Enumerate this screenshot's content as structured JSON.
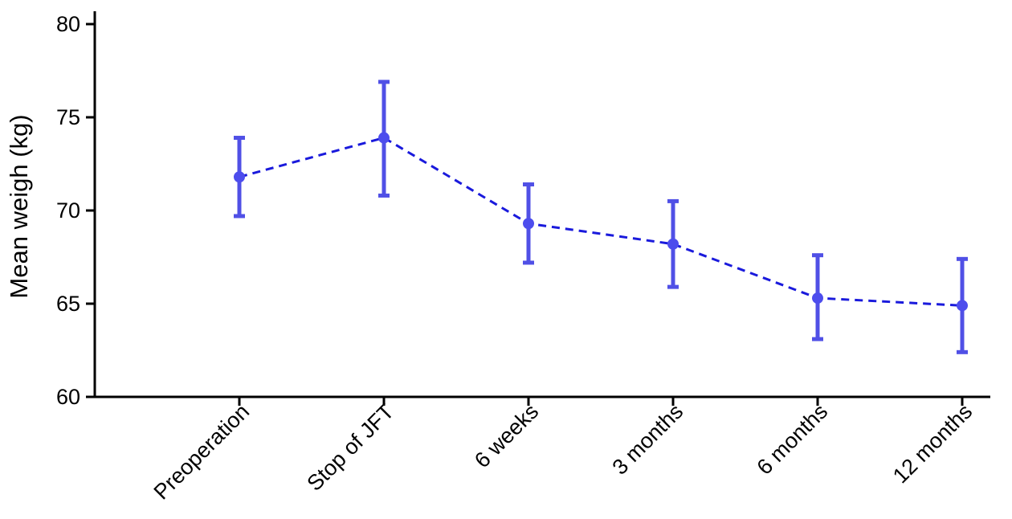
{
  "chart_data": {
    "type": "line",
    "title": "",
    "xlabel": "",
    "ylabel": "Mean weigh (kg)",
    "categories": [
      "Preoperation",
      "Stop of JFT",
      "6 weeks",
      "3 months",
      "6 months",
      "12 months"
    ],
    "ylim": [
      60,
      80
    ],
    "yticks": [
      60,
      65,
      70,
      75,
      80
    ],
    "grid": false,
    "legend": "none",
    "series": [
      {
        "values": [
          71.8,
          73.9,
          69.3,
          68.2,
          65.3,
          64.9
        ],
        "error_low": [
          69.7,
          70.8,
          67.2,
          65.9,
          63.1,
          62.4
        ],
        "error_high": [
          73.9,
          76.9,
          71.4,
          70.5,
          67.6,
          67.4
        ],
        "line_style": "dashed",
        "line_color": "#1a1adc",
        "marker_color": "#4d4ded",
        "errorbar_color": "#5050e6"
      }
    ]
  }
}
